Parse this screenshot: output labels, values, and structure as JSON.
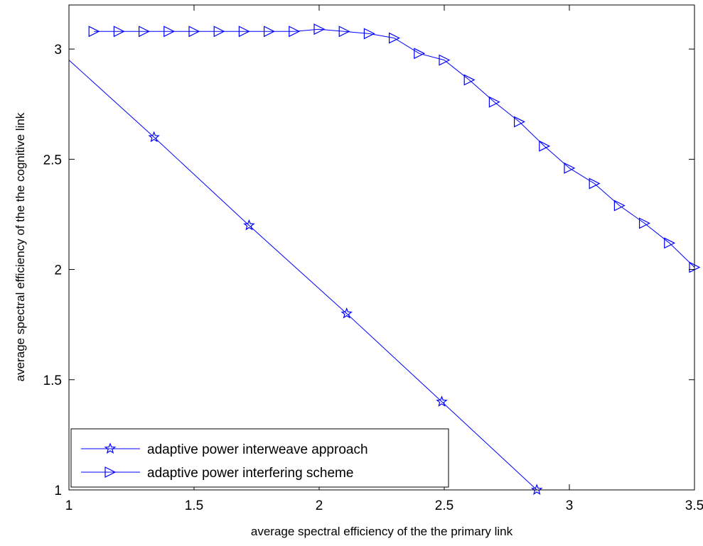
{
  "chart_data": {
    "type": "line",
    "xlabel": "average spectral efficiency of the the primary link",
    "ylabel": "average spectral efficiency of the the cognitive link",
    "xlim": [
      1,
      3.5
    ],
    "ylim": [
      1,
      3.2
    ],
    "xticks": [
      "1",
      "1.5",
      "2",
      "2.5",
      "3",
      "3.5"
    ],
    "yticks": [
      "1",
      "1.5",
      "2",
      "2.5",
      "3"
    ],
    "grid": false,
    "legend_position": "bottom-left",
    "series": [
      {
        "name": "adaptive power interweave approach",
        "marker": "star",
        "color": "#0000ff",
        "line_x": [
          1.0,
          1.34,
          1.72,
          2.11,
          2.49,
          2.87
        ],
        "line_y": [
          2.95,
          2.6,
          2.2,
          1.8,
          1.4,
          1.0
        ],
        "marker_x": [
          1.34,
          1.72,
          2.11,
          2.49,
          2.87
        ],
        "marker_y": [
          2.6,
          2.2,
          1.8,
          1.4,
          1.0
        ]
      },
      {
        "name": "adaptive power interfering scheme",
        "marker": "triangle-right",
        "color": "#0000ff",
        "line_x": [
          1.1,
          1.2,
          1.3,
          1.4,
          1.5,
          1.6,
          1.7,
          1.8,
          1.9,
          2.0,
          2.1,
          2.2,
          2.3,
          2.4,
          2.5,
          2.6,
          2.7,
          2.8,
          2.9,
          3.0,
          3.1,
          3.2,
          3.3,
          3.4,
          3.5
        ],
        "line_y": [
          3.08,
          3.08,
          3.08,
          3.08,
          3.08,
          3.08,
          3.08,
          3.08,
          3.08,
          3.09,
          3.08,
          3.07,
          3.05,
          2.98,
          2.95,
          2.86,
          2.76,
          2.67,
          2.56,
          2.46,
          2.39,
          2.29,
          2.21,
          2.12,
          2.01
        ],
        "marker_x": [
          1.1,
          1.2,
          1.3,
          1.4,
          1.5,
          1.6,
          1.7,
          1.8,
          1.9,
          2.0,
          2.1,
          2.2,
          2.3,
          2.4,
          2.5,
          2.6,
          2.7,
          2.8,
          2.9,
          3.0,
          3.1,
          3.2,
          3.3,
          3.4,
          3.5
        ],
        "marker_y": [
          3.08,
          3.08,
          3.08,
          3.08,
          3.08,
          3.08,
          3.08,
          3.08,
          3.08,
          3.09,
          3.08,
          3.07,
          3.05,
          2.98,
          2.95,
          2.86,
          2.76,
          2.67,
          2.56,
          2.46,
          2.39,
          2.29,
          2.21,
          2.12,
          2.01
        ]
      }
    ]
  }
}
